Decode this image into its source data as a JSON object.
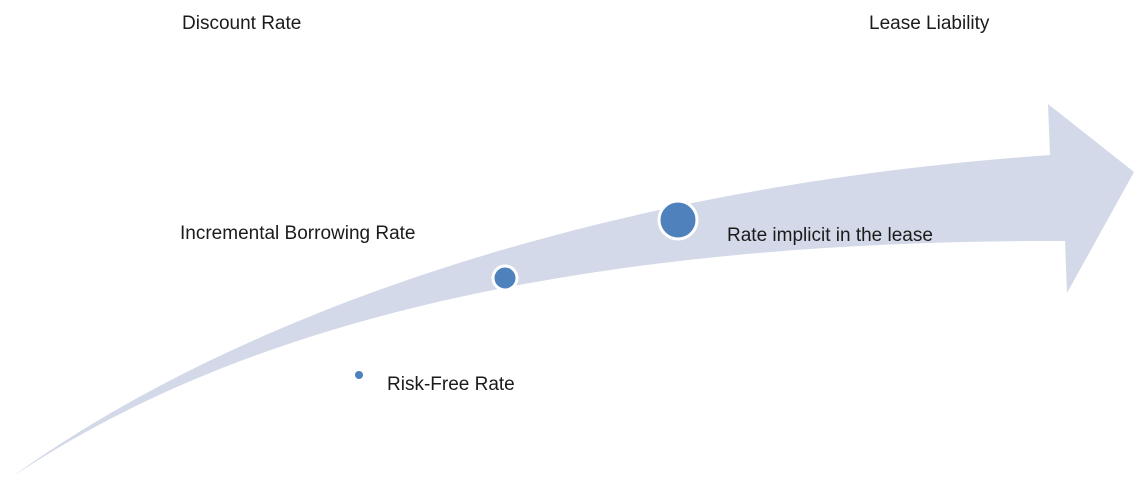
{
  "header": {
    "left_title": "Discount Rate",
    "right_title": "Lease Liability"
  },
  "points": [
    {
      "id": "risk-free",
      "label": "Risk-Free Rate",
      "level": 1
    },
    {
      "id": "incremental-borrowing",
      "label": "Incremental Borrowing Rate",
      "level": 2
    },
    {
      "id": "implicit",
      "label": "Rate implicit in the lease",
      "level": 3
    }
  ],
  "colors": {
    "arrow_fill": "#d3d9e8",
    "dot_fill": "#4f81bd",
    "dot_outline": "#ffffff",
    "text": "#1b1b1b"
  }
}
